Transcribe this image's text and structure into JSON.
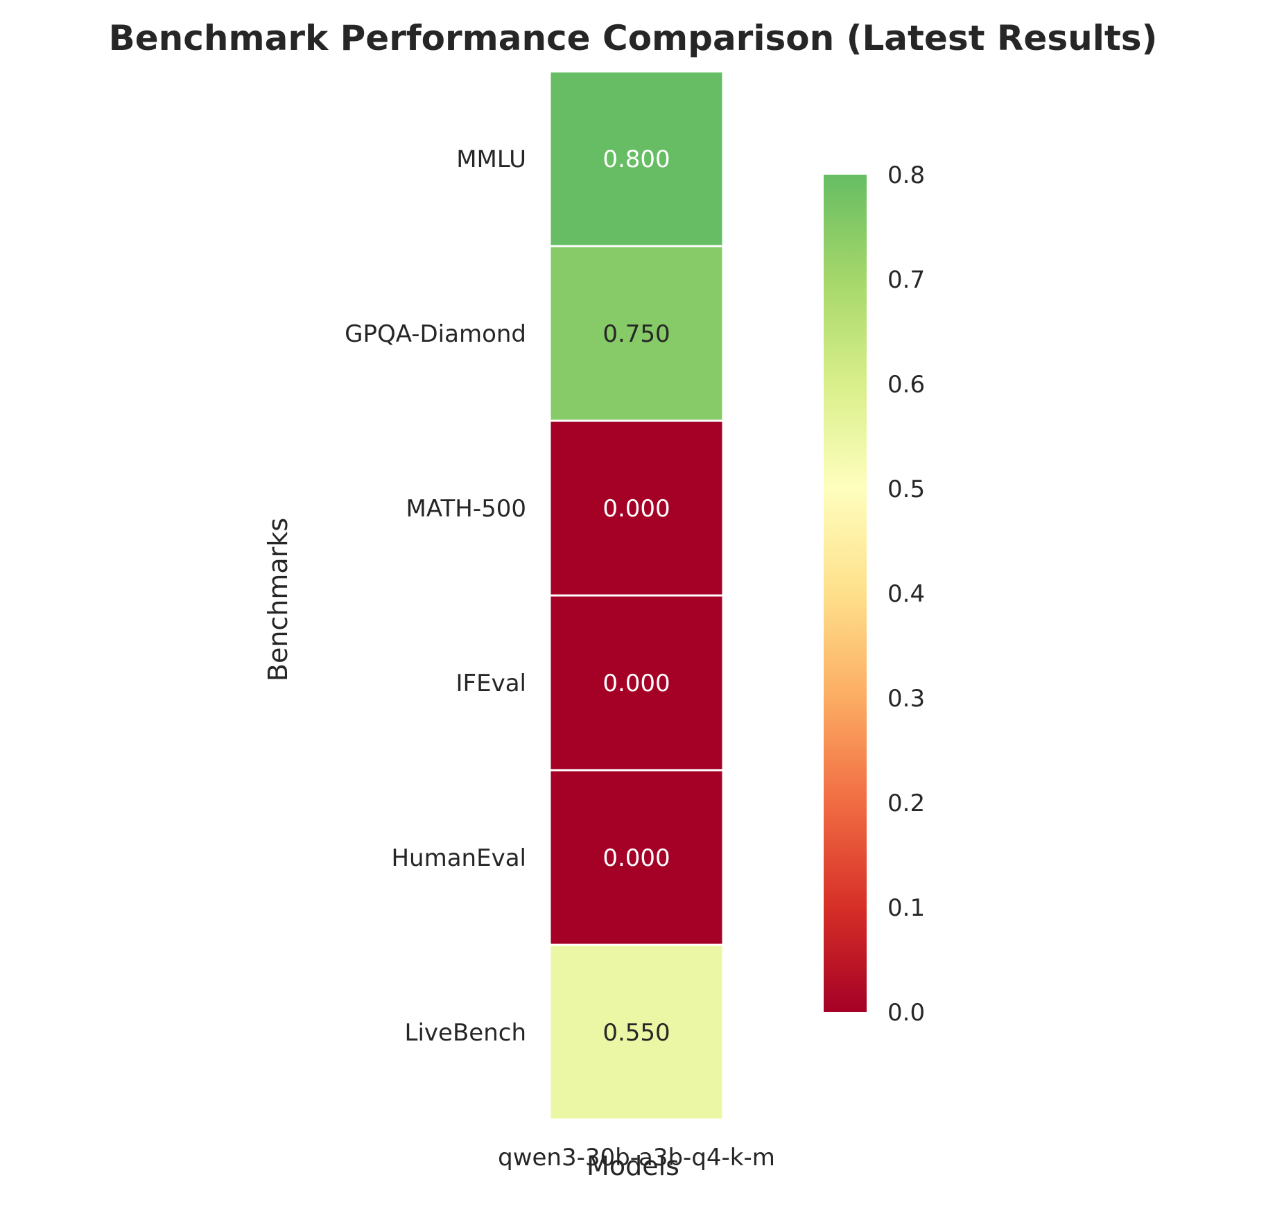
{
  "chart_data": {
    "type": "heatmap",
    "title": "Benchmark Performance Comparison (Latest Results)",
    "xlabel": "Models",
    "ylabel": "Benchmarks",
    "columns": [
      "qwen3-30b-a3b-q4-k-m"
    ],
    "rows": [
      "MMLU",
      "GPQA-Diamond",
      "MATH-500",
      "IFEval",
      "HumanEval",
      "LiveBench"
    ],
    "values": [
      [
        0.8
      ],
      [
        0.75
      ],
      [
        0.0
      ],
      [
        0.0
      ],
      [
        0.0
      ],
      [
        0.55
      ]
    ],
    "value_labels": [
      [
        "0.800"
      ],
      [
        "0.750"
      ],
      [
        "0.000"
      ],
      [
        "0.000"
      ],
      [
        "0.000"
      ],
      [
        "0.550"
      ]
    ],
    "colorbar": {
      "range": [
        0,
        0.8
      ],
      "ticks": [
        "0.0",
        "0.1",
        "0.2",
        "0.3",
        "0.4",
        "0.5",
        "0.6",
        "0.7",
        "0.8"
      ],
      "colormap": "RdYlGn"
    },
    "legend": "colorbar right",
    "grid": false
  }
}
